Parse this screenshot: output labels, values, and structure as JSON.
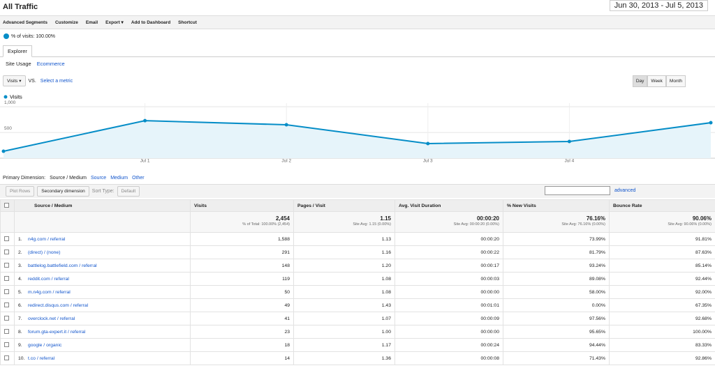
{
  "header": {
    "title": "All Traffic",
    "date_range": "Jun 30, 2013 - Jul 5, 2013"
  },
  "toolbar": [
    "Advanced Segments",
    "Customize",
    "Email",
    "Export",
    "Add to Dashboard",
    "Shortcut"
  ],
  "segment": "% of visits: 100.00%",
  "tab": "Explorer",
  "subtabs": [
    "Site Usage",
    "Ecommerce"
  ],
  "metric": {
    "selected": "Visits",
    "vs": "VS.",
    "select": "Select a metric"
  },
  "granularity": [
    "Day",
    "Week",
    "Month"
  ],
  "chart": {
    "type": "line",
    "categories": [
      null,
      "Jul 1",
      "Jul 2",
      "Jul 3",
      "Jul 4",
      null
    ],
    "series": [
      {
        "name": "Visits",
        "color": "#058dc7",
        "values": [
          135,
          730,
          650,
          285,
          325,
          690
        ]
      }
    ],
    "ylim": [
      0,
      1070
    ],
    "yticks": [
      {
        "value": 1000,
        "label": "1,000"
      },
      500
    ],
    "grid": true
  },
  "dimension": {
    "label": "Primary Dimension:",
    "options": [
      "Source / Medium",
      "Source",
      "Medium",
      "Other"
    ]
  },
  "filters": {
    "plot_rows": "Plot Rows",
    "secondary": "Secondary dimension",
    "sort_label": "Sort Type:",
    "sort": "Default",
    "advanced": "advanced"
  },
  "table": {
    "headers": [
      "Source / Medium",
      "Visits",
      "Pages / Visit",
      "Avg. Visit Duration",
      "% New Visits",
      "Bounce Rate"
    ],
    "totals": [
      {
        "main": "2,454",
        "sub": "% of Total: 100.00% (2,454)"
      },
      {
        "main": "1.15",
        "sub": "Site Avg: 1.15 (0.00%)"
      },
      {
        "main": "00:00:20",
        "sub": "Site Avg: 00:00:20 (0.00%)"
      },
      {
        "main": "76.16%",
        "sub": "Site Avg: 76.16% (0.00%)"
      },
      {
        "main": "90.06%",
        "sub": "Site Avg: 90.06% (0.00%)"
      }
    ],
    "rows": [
      [
        "1.",
        "n4g.com / referral",
        "1,588",
        "1.13",
        "00:00:20",
        "73.99%",
        "91.81%"
      ],
      [
        "2.",
        "(direct) / (none)",
        "291",
        "1.16",
        "00:00:22",
        "81.79%",
        "87.63%"
      ],
      [
        "3.",
        "battlelog.battlefield.com / referral",
        "148",
        "1.20",
        "00:00:17",
        "93.24%",
        "85.14%"
      ],
      [
        "4.",
        "reddit.com / referral",
        "119",
        "1.08",
        "00:00:03",
        "89.08%",
        "92.44%"
      ],
      [
        "5.",
        "m.n4g.com / referral",
        "50",
        "1.08",
        "00:00:00",
        "58.00%",
        "92.00%"
      ],
      [
        "6.",
        "redirect.disqus.com / referral",
        "49",
        "1.43",
        "00:01:01",
        "0.00%",
        "67.35%"
      ],
      [
        "7.",
        "overclock.net / referral",
        "41",
        "1.07",
        "00:00:09",
        "97.56%",
        "92.68%"
      ],
      [
        "8.",
        "forum.gta-expert.it / referral",
        "23",
        "1.00",
        "00:00:00",
        "95.65%",
        "100.00%"
      ],
      [
        "9.",
        "google / organic",
        "18",
        "1.17",
        "00:00:24",
        "94.44%",
        "83.33%"
      ],
      [
        "10.",
        "t.co / referral",
        "14",
        "1.36",
        "00:00:08",
        "71.43%",
        "92.86%"
      ]
    ]
  }
}
